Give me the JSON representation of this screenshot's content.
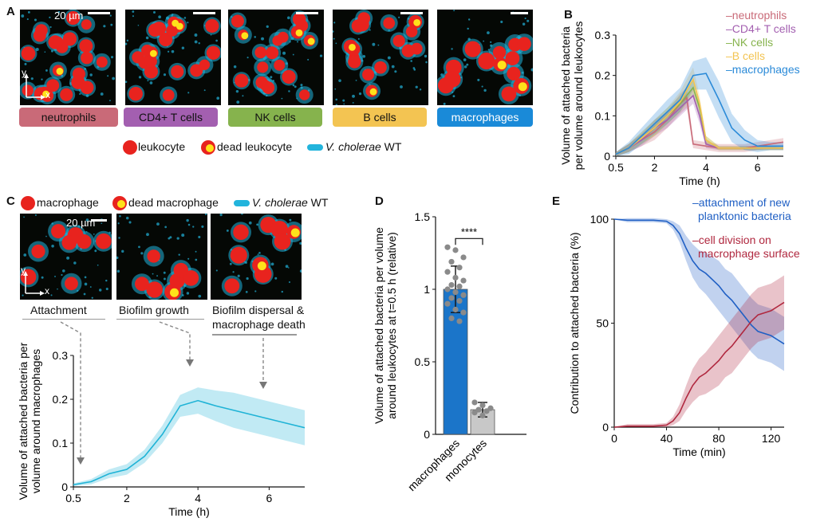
{
  "panels": {
    "A": "A",
    "B": "B",
    "C": "C",
    "D": "D",
    "E": "E"
  },
  "panelA": {
    "scale_label": "20 µm",
    "axis_y": "y",
    "axis_x": "x",
    "cell_types": [
      {
        "label": "neutrophils",
        "color": "#c96a78"
      },
      {
        "label": "CD4+ T cells",
        "color": "#a35fb0"
      },
      {
        "label": "NK cells",
        "color": "#86b34d"
      },
      {
        "label": "B cells",
        "color": "#f3c452"
      },
      {
        "label": "macrophages",
        "color": "#1a8ad8"
      }
    ],
    "legend": {
      "leukocyte": "leukocyte",
      "dead": "dead leukocyte",
      "vc_italic": "V. cholerae",
      "vc_rest": " WT"
    }
  },
  "panelC": {
    "legend": {
      "macrophage": "macrophage",
      "dead": "dead macrophage",
      "vc_italic": "V. cholerae",
      "vc_rest": " WT"
    },
    "scale_label": "20 µm",
    "axis_y": "y",
    "axis_x": "x",
    "stages": [
      "Attachment",
      "Biofilm growth",
      "Biofilm dispersal &",
      "macrophage death"
    ]
  },
  "colors": {
    "red": "#e8231e",
    "yellow": "#ffe21a",
    "cyan": "#22b4dc",
    "C_line": "#1fb3d6",
    "macro": "#1b75c9",
    "mono": "#c8c8c8",
    "E_blue": "#1f5fc4",
    "E_red": "#b0283f"
  },
  "chart_data": [
    {
      "panel": "B",
      "type": "line",
      "xlabel": "Time (h)",
      "ylabel": [
        "Volume of attached bacteria",
        "per volume around leukocytes"
      ],
      "xlim": [
        0.5,
        7
      ],
      "ylim": [
        0,
        0.3
      ],
      "xticks": [
        0.5,
        2,
        4,
        6
      ],
      "xtick_labels": [
        "0.5",
        "2",
        "4",
        "6"
      ],
      "yticks": [
        0,
        0.1,
        0.2,
        0.3
      ],
      "ytick_labels": [
        "0",
        "0.1",
        "0.2",
        "0.3"
      ],
      "legend_position": "top-right",
      "series": [
        {
          "name": "neutrophils",
          "color": "#c96a78",
          "x": [
            0.5,
            1,
            1.5,
            2,
            2.5,
            3,
            3.25,
            3.5,
            4,
            4.5,
            5,
            5.5,
            6,
            6.5,
            7
          ],
          "y": [
            0.005,
            0.02,
            0.04,
            0.06,
            0.09,
            0.13,
            0.145,
            0.03,
            0.025,
            0.02,
            0.02,
            0.02,
            0.025,
            0.03,
            0.035
          ],
          "err": [
            0.005,
            0.01,
            0.015,
            0.02,
            0.02,
            0.025,
            0.025,
            0.01,
            0.01,
            0.01,
            0.01,
            0.01,
            0.01,
            0.01,
            0.01
          ]
        },
        {
          "name": "CD4+ T cells",
          "color": "#a35fb0",
          "x": [
            0.5,
            1,
            1.5,
            2,
            2.5,
            3,
            3.5,
            3.75,
            4,
            4.5,
            5,
            5.5,
            6,
            6.5,
            7
          ],
          "y": [
            0.005,
            0.02,
            0.04,
            0.07,
            0.09,
            0.12,
            0.15,
            0.1,
            0.03,
            0.02,
            0.02,
            0.02,
            0.02,
            0.02,
            0.02
          ],
          "err": [
            0.005,
            0.01,
            0.015,
            0.02,
            0.02,
            0.02,
            0.02,
            0.02,
            0.01,
            0.005,
            0.005,
            0.005,
            0.005,
            0.005,
            0.005
          ]
        },
        {
          "name": "NK cells",
          "color": "#86b34d",
          "x": [
            0.5,
            1,
            1.5,
            2,
            2.5,
            3,
            3.5,
            3.75,
            4,
            4.5,
            5,
            5.5,
            6,
            6.5,
            7
          ],
          "y": [
            0.005,
            0.02,
            0.045,
            0.07,
            0.1,
            0.13,
            0.17,
            0.12,
            0.04,
            0.02,
            0.02,
            0.02,
            0.02,
            0.02,
            0.02
          ],
          "err": [
            0.005,
            0.01,
            0.015,
            0.02,
            0.02,
            0.02,
            0.02,
            0.02,
            0.01,
            0.005,
            0.005,
            0.005,
            0.005,
            0.005,
            0.005
          ]
        },
        {
          "name": "B cells",
          "color": "#f3c452",
          "x": [
            0.5,
            1,
            1.5,
            2,
            2.5,
            3,
            3.5,
            3.75,
            4,
            4.5,
            5,
            5.5,
            6,
            6.5,
            7
          ],
          "y": [
            0.005,
            0.02,
            0.045,
            0.07,
            0.1,
            0.135,
            0.19,
            0.13,
            0.04,
            0.02,
            0.02,
            0.02,
            0.02,
            0.02,
            0.02
          ],
          "err": [
            0.005,
            0.01,
            0.015,
            0.02,
            0.02,
            0.025,
            0.03,
            0.02,
            0.01,
            0.005,
            0.005,
            0.005,
            0.005,
            0.005,
            0.005
          ]
        },
        {
          "name": "macrophages",
          "color": "#2a8ad8",
          "x": [
            0.5,
            1,
            1.5,
            2,
            2.5,
            3,
            3.5,
            4,
            4.5,
            5,
            5.5,
            6,
            6.5,
            7
          ],
          "y": [
            0.005,
            0.02,
            0.05,
            0.08,
            0.11,
            0.14,
            0.2,
            0.205,
            0.14,
            0.07,
            0.04,
            0.025,
            0.025,
            0.025
          ],
          "err": [
            0.005,
            0.015,
            0.02,
            0.025,
            0.03,
            0.03,
            0.035,
            0.04,
            0.045,
            0.035,
            0.025,
            0.015,
            0.01,
            0.01
          ]
        }
      ]
    },
    {
      "panel": "C",
      "type": "line",
      "xlabel": "Time (h)",
      "ylabel": [
        "Volume of attached bacteria per",
        "volume around macrophages"
      ],
      "xlim": [
        0.5,
        7
      ],
      "ylim": [
        0,
        0.3
      ],
      "xticks": [
        0.5,
        2,
        4,
        6
      ],
      "xtick_labels": [
        "0.5",
        "2",
        "4",
        "6"
      ],
      "yticks": [
        0,
        0.1,
        0.2,
        0.3
      ],
      "ytick_labels": [
        "0",
        "0.1",
        "0.2",
        "0.3"
      ],
      "series": [
        {
          "name": "",
          "color": "#1fb3d6",
          "x": [
            0.5,
            1,
            1.5,
            2,
            2.5,
            3,
            3.5,
            4,
            4.5,
            5,
            5.5,
            6,
            6.5,
            7
          ],
          "y": [
            0.005,
            0.012,
            0.03,
            0.04,
            0.07,
            0.12,
            0.185,
            0.197,
            0.185,
            0.175,
            0.165,
            0.155,
            0.145,
            0.135
          ],
          "err": [
            0.003,
            0.006,
            0.01,
            0.012,
            0.015,
            0.02,
            0.025,
            0.03,
            0.035,
            0.04,
            0.04,
            0.04,
            0.04,
            0.04
          ]
        }
      ]
    },
    {
      "panel": "D",
      "type": "bar",
      "ylabel": [
        "Volume of attached bacteria per volume",
        "around leukocytes at t=0.5 h (relative)"
      ],
      "categories": [
        "macrophages",
        "monocytes"
      ],
      "values": [
        1.0,
        0.17
      ],
      "err": [
        0.16,
        0.05
      ],
      "ylim": [
        0,
        1.5
      ],
      "yticks": [
        0,
        0.5,
        1,
        1.5
      ],
      "ytick_labels": [
        "0",
        "0.5",
        "1",
        "1.5"
      ],
      "significance": "****",
      "points": [
        [
          1.29,
          1.27,
          1.22,
          1.19,
          1.15,
          1.12,
          1.08,
          1.06,
          1.03,
          1.02,
          1.0,
          0.98,
          0.96,
          0.94,
          0.92,
          0.9,
          0.86,
          0.84,
          0.8,
          0.78
        ],
        [
          0.22,
          0.2,
          0.18,
          0.17,
          0.16,
          0.15,
          0.13
        ]
      ]
    },
    {
      "panel": "E",
      "type": "line",
      "xlabel": "Time (min)",
      "ylabel": [
        "Contribution to attached bacteria (%)"
      ],
      "xlim": [
        0,
        130
      ],
      "ylim": [
        0,
        100
      ],
      "xticks": [
        0,
        40,
        80,
        120
      ],
      "xtick_labels": [
        "0",
        "40",
        "80",
        "120"
      ],
      "yticks": [
        0,
        50,
        100
      ],
      "ytick_labels": [
        "0",
        "50",
        "100"
      ],
      "series": [
        {
          "name": "attachment of new planktonic bacteria",
          "label_lines": [
            "attachment of new",
            "planktonic bacteria"
          ],
          "color": "#1f5fc4",
          "x": [
            0,
            10,
            20,
            30,
            40,
            45,
            50,
            55,
            60,
            65,
            70,
            75,
            80,
            85,
            90,
            95,
            100,
            105,
            110,
            115,
            120,
            125,
            130
          ],
          "y": [
            100,
            99.5,
            99.5,
            99.5,
            99,
            97,
            93,
            86,
            80,
            76,
            74,
            71,
            68,
            64,
            61,
            57,
            53,
            49,
            46,
            45,
            44,
            42,
            40
          ],
          "err": [
            0,
            1,
            1,
            1,
            1,
            2,
            4,
            6,
            8,
            9,
            10,
            11,
            12,
            12,
            13,
            13,
            13,
            13,
            13,
            13,
            13,
            13,
            13
          ]
        },
        {
          "name": "cell division on macrophage surface",
          "label_lines": [
            "cell division on",
            "macrophage surface"
          ],
          "color": "#b0283f",
          "x": [
            0,
            10,
            20,
            30,
            40,
            45,
            50,
            55,
            60,
            65,
            70,
            75,
            80,
            85,
            90,
            95,
            100,
            105,
            110,
            115,
            120,
            125,
            130
          ],
          "y": [
            0,
            0.5,
            0.5,
            0.5,
            1,
            3,
            7,
            14,
            20,
            24,
            26,
            29,
            32,
            36,
            39,
            43,
            47,
            51,
            54,
            55,
            56,
            58,
            60
          ],
          "err": [
            0,
            1,
            1,
            1,
            1,
            2,
            4,
            6,
            8,
            9,
            10,
            11,
            12,
            12,
            13,
            13,
            13,
            13,
            13,
            13,
            13,
            13,
            13
          ]
        }
      ]
    }
  ]
}
